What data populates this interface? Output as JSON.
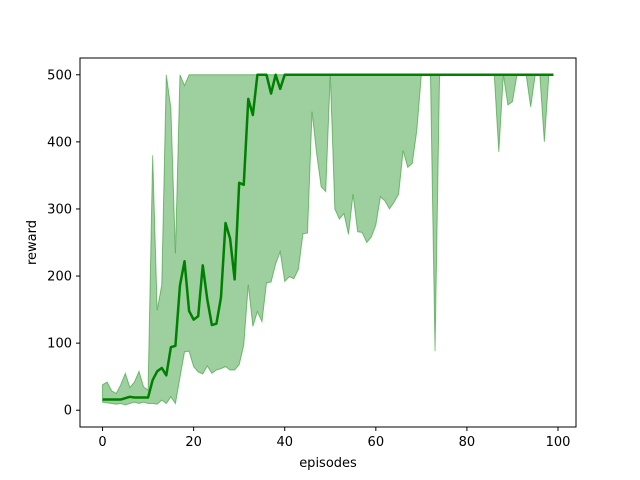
{
  "chart_data": {
    "type": "line",
    "title": "",
    "xlabel": "episodes",
    "ylabel": "reward",
    "xlim": [
      -4.95,
      103.95
    ],
    "ylim": [
      -25,
      525
    ],
    "xticks": [
      0,
      20,
      40,
      60,
      80,
      100
    ],
    "yticks": [
      0,
      100,
      200,
      300,
      400,
      500
    ],
    "grid": false,
    "legend": "none",
    "colors": {
      "line": "#008000",
      "band": "#008000"
    },
    "series": [
      {
        "x": [
          0,
          1,
          2,
          3,
          4,
          5,
          6,
          7,
          8,
          9,
          10,
          11,
          12,
          13,
          14,
          15,
          16,
          17,
          18,
          19,
          20,
          21,
          22,
          23,
          24,
          25,
          26,
          27,
          28,
          29,
          30,
          31,
          32,
          33,
          34,
          35,
          36,
          37,
          38,
          39,
          40,
          41,
          42,
          43,
          44,
          45,
          46,
          47,
          48,
          49,
          50,
          51,
          52,
          53,
          54,
          55,
          56,
          57,
          58,
          59,
          60,
          61,
          62,
          63,
          64,
          65,
          66,
          67,
          68,
          69,
          70,
          71,
          72,
          73,
          74,
          75,
          76,
          77,
          78,
          79,
          80,
          81,
          82,
          83,
          84,
          85,
          86,
          87,
          88,
          89,
          90,
          91,
          92,
          93,
          94,
          95,
          96,
          97,
          98,
          99
        ],
        "mean": [
          16,
          16,
          16,
          16,
          16,
          18,
          20,
          19,
          19,
          19,
          19,
          45,
          58,
          63,
          52,
          94,
          96,
          186,
          222,
          148,
          135,
          140,
          216,
          165,
          127,
          129,
          168,
          279,
          256,
          195,
          339,
          336,
          464,
          440,
          500,
          500,
          500,
          472,
          500,
          479,
          500,
          500,
          500,
          500,
          500,
          500,
          500,
          500,
          500,
          500,
          500,
          500,
          500,
          500,
          500,
          500,
          500,
          500,
          500,
          500,
          500,
          500,
          500,
          500,
          500,
          500,
          500,
          500,
          500,
          500,
          500,
          500,
          500,
          500,
          500,
          500,
          500,
          500,
          500,
          500,
          500,
          500,
          500,
          500,
          500,
          500,
          500,
          500,
          500,
          500,
          500,
          500,
          500,
          500,
          500,
          500,
          500,
          500,
          500,
          500
        ],
        "lower": [
          12,
          11,
          10,
          9,
          10,
          8,
          10,
          12,
          10,
          12,
          10,
          10,
          9,
          15,
          10,
          20,
          10,
          49,
          87,
          88,
          65,
          57,
          54,
          66,
          55,
          60,
          62,
          65,
          60,
          60,
          68,
          97,
          187,
          125,
          147,
          132,
          190,
          191,
          218,
          236,
          192,
          199,
          196,
          210,
          263,
          264,
          445,
          383,
          333,
          326,
          500,
          300,
          285,
          293,
          262,
          322,
          266,
          265,
          250,
          258,
          276,
          318,
          312,
          300,
          310,
          322,
          387,
          362,
          368,
          417,
          500,
          500,
          500,
          88,
          500,
          500,
          500,
          500,
          500,
          500,
          500,
          500,
          500,
          500,
          500,
          500,
          500,
          385,
          500,
          455,
          460,
          500,
          500,
          500,
          452,
          500,
          500,
          400,
          500,
          500
        ],
        "upper": [
          38,
          42,
          29,
          25,
          38,
          55,
          34,
          42,
          58,
          35,
          30,
          380,
          149,
          187,
          500,
          450,
          234,
          500,
          484,
          500,
          500,
          500,
          500,
          500,
          500,
          500,
          500,
          500,
          500,
          500,
          500,
          500,
          500,
          500,
          500,
          500,
          500,
          500,
          500,
          500,
          500,
          500,
          500,
          500,
          500,
          500,
          500,
          500,
          500,
          500,
          500,
          500,
          500,
          500,
          500,
          500,
          500,
          500,
          500,
          500,
          500,
          500,
          500,
          500,
          500,
          500,
          500,
          500,
          500,
          500,
          500,
          500,
          500,
          500,
          500,
          500,
          500,
          500,
          500,
          500,
          500,
          500,
          500,
          500,
          500,
          500,
          500,
          500,
          500,
          500,
          500,
          500,
          500,
          500,
          500,
          500,
          500,
          500,
          500,
          500
        ]
      }
    ]
  }
}
